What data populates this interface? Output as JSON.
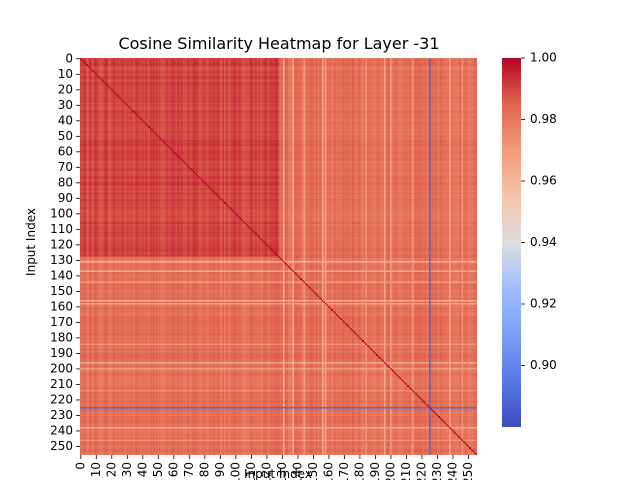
{
  "chart_data": {
    "type": "heatmap",
    "title": "Cosine Similarity Heatmap for Layer -31",
    "xlabel": "Input Index",
    "ylabel": "Input Index",
    "n": 256,
    "x_ticks": [
      0,
      10,
      20,
      30,
      40,
      50,
      60,
      70,
      80,
      90,
      100,
      110,
      120,
      130,
      140,
      150,
      160,
      170,
      180,
      190,
      200,
      210,
      220,
      230,
      240,
      250
    ],
    "y_ticks": [
      0,
      10,
      20,
      30,
      40,
      50,
      60,
      70,
      80,
      90,
      100,
      110,
      120,
      130,
      140,
      150,
      160,
      170,
      180,
      190,
      200,
      210,
      220,
      230,
      240,
      250
    ],
    "colormap": "coolwarm",
    "vmin": 0.88,
    "vmax": 1.0,
    "colorbar_ticks": [
      "0.90",
      "0.92",
      "0.94",
      "0.96",
      "0.98",
      "1.00"
    ],
    "diagonal_value": 1.0,
    "block_boundary_index": 128,
    "block_top_left_value": 0.99,
    "block_other_value": 0.982,
    "outlier_index": 225,
    "outlier_value": 0.89,
    "light_bands": [
      {
        "index": 131,
        "value": 0.963
      },
      {
        "index": 137,
        "value": 0.965
      },
      {
        "index": 144,
        "value": 0.97
      },
      {
        "index": 156,
        "value": 0.965
      },
      {
        "index": 158,
        "value": 0.968
      },
      {
        "index": 184,
        "value": 0.972
      },
      {
        "index": 196,
        "value": 0.966
      },
      {
        "index": 200,
        "value": 0.97
      },
      {
        "index": 214,
        "value": 0.973
      },
      {
        "index": 238,
        "value": 0.966
      },
      {
        "index": 246,
        "value": 0.972
      }
    ]
  }
}
